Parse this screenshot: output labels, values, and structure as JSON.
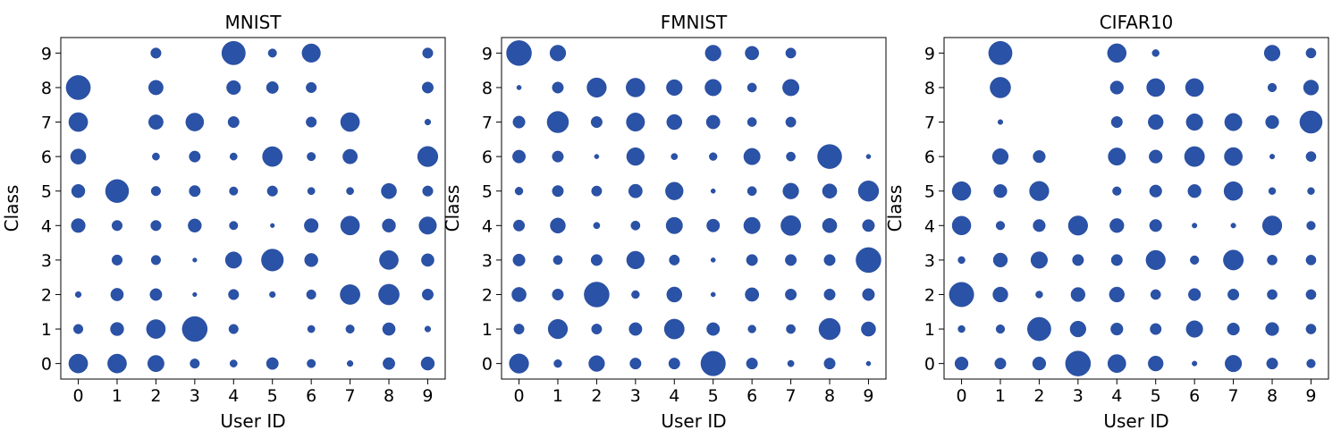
{
  "colors": {
    "marker": "#2a52a6"
  },
  "chart_data": [
    {
      "type": "scatter",
      "title": "MNIST",
      "xlabel": "User ID",
      "ylabel": "Class",
      "xticks": [
        "0",
        "1",
        "2",
        "3",
        "4",
        "5",
        "6",
        "7",
        "8",
        "9"
      ],
      "yticks": [
        "0",
        "1",
        "2",
        "3",
        "4",
        "5",
        "6",
        "7",
        "8",
        "9"
      ],
      "xlim": [
        -0.45,
        9.45
      ],
      "ylim": [
        -0.45,
        9.45
      ],
      "grid": false,
      "size_matrix": [
        [
          20,
          20,
          15,
          5,
          3,
          8,
          4,
          2,
          8,
          10
        ],
        [
          5,
          10,
          20,
          35,
          5,
          0,
          3,
          4,
          9,
          2
        ],
        [
          2,
          9,
          8,
          1,
          6,
          2,
          5,
          22,
          24,
          7
        ],
        [
          0,
          6,
          5,
          1,
          15,
          27,
          10,
          0,
          20,
          9
        ],
        [
          11,
          6,
          6,
          10,
          4,
          1,
          11,
          20,
          10,
          17
        ],
        [
          10,
          30,
          5,
          7,
          4,
          6,
          3,
          3,
          13,
          6
        ],
        [
          13,
          0,
          3,
          7,
          3,
          22,
          4,
          12,
          0,
          23
        ],
        [
          20,
          0,
          12,
          18,
          7,
          0,
          6,
          20,
          0,
          2
        ],
        [
          33,
          0,
          12,
          0,
          11,
          8,
          6,
          0,
          0,
          7
        ],
        [
          0,
          0,
          6,
          0,
          31,
          4,
          19,
          0,
          0,
          6
        ]
      ]
    },
    {
      "type": "scatter",
      "title": "FMNIST",
      "xlabel": "User ID",
      "ylabel": "Class",
      "xticks": [
        "0",
        "1",
        "2",
        "3",
        "4",
        "5",
        "6",
        "7",
        "8",
        "9"
      ],
      "yticks": [
        "0",
        "1",
        "2",
        "3",
        "4",
        "5",
        "6",
        "7",
        "8",
        "9"
      ],
      "xlim": [
        -0.45,
        9.45
      ],
      "ylim": [
        -0.45,
        9.45
      ],
      "grid": false,
      "size_matrix": [
        [
          18,
          3,
          12,
          6,
          6,
          29,
          6,
          2,
          6,
          1
        ],
        [
          5,
          18,
          5,
          8,
          19,
          8,
          3,
          4,
          22,
          10
        ],
        [
          10,
          6,
          30,
          3,
          11,
          1,
          9,
          6,
          6,
          7
        ],
        [
          7,
          4,
          6,
          15,
          5,
          1,
          6,
          6,
          6,
          30
        ],
        [
          6,
          11,
          2,
          4,
          13,
          8,
          13,
          19,
          10,
          7
        ],
        [
          3,
          6,
          5,
          9,
          15,
          1,
          4,
          12,
          10,
          20
        ],
        [
          8,
          6,
          1,
          15,
          2,
          3,
          13,
          4,
          28,
          1
        ],
        [
          7,
          22,
          6,
          16,
          11,
          9,
          4,
          5,
          0,
          0
        ],
        [
          1,
          6,
          18,
          17,
          12,
          13,
          4,
          13,
          0,
          0
        ],
        [
          30,
          12,
          0,
          0,
          0,
          12,
          9,
          5,
          0,
          0
        ]
      ]
    },
    {
      "type": "scatter",
      "title": "CIFAR10",
      "xlabel": "User ID",
      "ylabel": "Class",
      "xticks": [
        "0",
        "1",
        "2",
        "3",
        "4",
        "5",
        "6",
        "7",
        "8",
        "9"
      ],
      "yticks": [
        "0",
        "1",
        "2",
        "3",
        "4",
        "5",
        "6",
        "7",
        "8",
        "9"
      ],
      "xlim": [
        -0.45,
        9.45
      ],
      "ylim": [
        -0.45,
        9.45
      ],
      "grid": false,
      "size_matrix": [
        [
          7,
          5,
          7,
          25,
          13,
          9,
          1,
          11,
          5,
          3
        ],
        [
          2,
          3,
          22,
          10,
          6,
          5,
          11,
          6,
          7,
          4
        ],
        [
          24,
          9,
          2,
          8,
          9,
          4,
          6,
          5,
          4,
          4
        ],
        [
          2,
          8,
          11,
          5,
          5,
          15,
          3,
          16,
          4,
          4
        ],
        [
          14,
          3,
          6,
          15,
          8,
          6,
          1,
          1,
          15,
          3
        ],
        [
          14,
          7,
          15,
          0,
          3,
          6,
          7,
          14,
          2,
          2
        ],
        [
          0,
          10,
          6,
          0,
          12,
          7,
          16,
          13,
          1,
          4
        ],
        [
          0,
          1,
          0,
          0,
          5,
          9,
          11,
          12,
          7,
          20
        ],
        [
          0,
          17,
          0,
          0,
          7,
          13,
          13,
          0,
          3,
          9
        ],
        [
          0,
          22,
          0,
          0,
          14,
          2,
          0,
          0,
          10,
          4
        ]
      ]
    }
  ]
}
